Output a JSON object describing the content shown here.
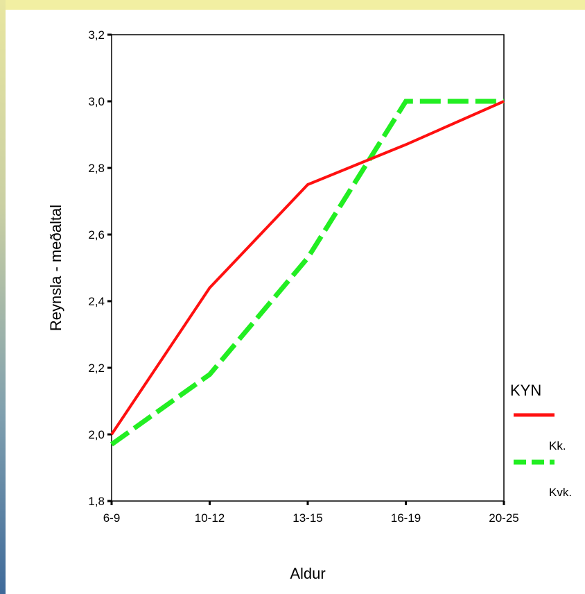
{
  "chart_data": {
    "type": "line",
    "categories": [
      "6-9",
      "10-12",
      "13-15",
      "16-19",
      "20-25"
    ],
    "series": [
      {
        "name": "Kk.",
        "values": [
          2.0,
          2.44,
          2.75,
          2.87,
          3.0
        ],
        "color": "#ff1010",
        "style": "solid"
      },
      {
        "name": "Kvk.",
        "values": [
          1.97,
          2.18,
          2.53,
          3.0,
          3.0
        ],
        "color": "#22ee22",
        "style": "dashed"
      }
    ],
    "xlabel": "Aldur",
    "ylabel": "Reynsla - meðaltal",
    "ylim": [
      1.8,
      3.2
    ],
    "yticks": [
      "1,8",
      "2,0",
      "2,2",
      "2,4",
      "2,6",
      "2,8",
      "3,0",
      "3,2"
    ],
    "legend": {
      "title": "KYN",
      "placement": "right"
    },
    "grid": false
  }
}
